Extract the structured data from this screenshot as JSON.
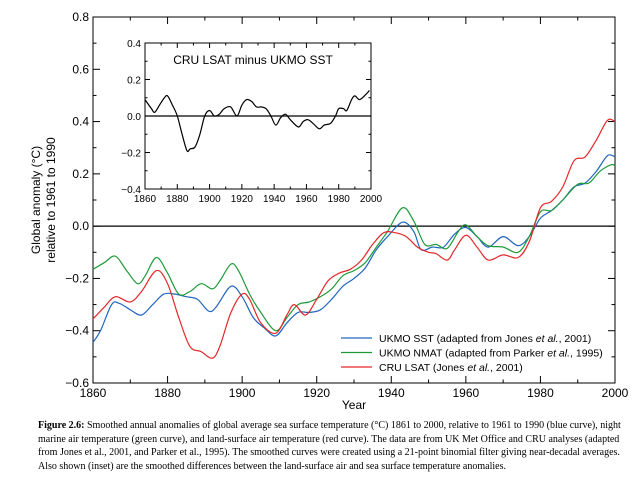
{
  "chart_data": [
    {
      "type": "line",
      "xlabel": "Year",
      "ylabel": "Global anomaly (°C)",
      "ylabel2": "relative to 1961 to 1990",
      "xlim": [
        1860,
        2000
      ],
      "ylim": [
        -0.6,
        0.8
      ],
      "xticks": [
        "1860",
        "1880",
        "1900",
        "1920",
        "1940",
        "1960",
        "1980",
        "2000"
      ],
      "yticks": [
        "0.8",
        "0.6",
        "0.4",
        "0.2",
        "0.0",
        "−0.2",
        "−0.4",
        "−0.6"
      ],
      "zero_line": true,
      "grid": false,
      "legend_position": "bottom-right",
      "series": [
        {
          "name": "UKMO SST (adapted from Jones et al., 2001)",
          "label_main": "UKMO SST (adapted from Jones ",
          "label_italic": "et al.",
          "label_end": ", 2001)",
          "color": "#2166c0",
          "x": [
            1860,
            1862,
            1865,
            1867,
            1870,
            1873,
            1876,
            1879,
            1882,
            1885,
            1888,
            1891,
            1893,
            1897,
            1900,
            1903,
            1906,
            1909,
            1912,
            1915,
            1918,
            1921,
            1924,
            1927,
            1930,
            1933,
            1936,
            1939,
            1943,
            1946,
            1948,
            1951,
            1954,
            1957,
            1960,
            1963,
            1966,
            1970,
            1974,
            1977,
            1980,
            1983,
            1986,
            1989,
            1992,
            1995,
            1998,
            2000
          ],
          "y": [
            -0.445,
            -0.4,
            -0.3,
            -0.295,
            -0.32,
            -0.34,
            -0.3,
            -0.26,
            -0.26,
            -0.27,
            -0.28,
            -0.325,
            -0.31,
            -0.23,
            -0.27,
            -0.35,
            -0.39,
            -0.42,
            -0.37,
            -0.33,
            -0.33,
            -0.32,
            -0.28,
            -0.23,
            -0.2,
            -0.16,
            -0.09,
            -0.04,
            0.015,
            -0.02,
            -0.09,
            -0.08,
            -0.08,
            -0.03,
            -0.005,
            -0.04,
            -0.08,
            -0.04,
            -0.075,
            -0.04,
            0.03,
            0.06,
            0.1,
            0.15,
            0.165,
            0.21,
            0.27,
            0.265
          ]
        },
        {
          "name": "UKMO NMAT (adapted from Parker et al., 1995)",
          "label_main": "UKMO NMAT (adapted from Parker ",
          "label_italic": "et al.",
          "label_end": ", 1995)",
          "color": "#1f9a3a",
          "x": [
            1860,
            1863,
            1866,
            1869,
            1872,
            1874,
            1877,
            1880,
            1883,
            1886,
            1889,
            1892,
            1894,
            1897,
            1899,
            1902,
            1905,
            1909,
            1912,
            1915,
            1918,
            1921,
            1924,
            1927,
            1930,
            1933,
            1936,
            1939,
            1943,
            1946,
            1949,
            1952,
            1955,
            1958,
            1960,
            1963,
            1966,
            1970,
            1974,
            1977,
            1980,
            1983,
            1986,
            1990,
            1993,
            1996,
            1999,
            2000
          ],
          "y": [
            -0.165,
            -0.14,
            -0.115,
            -0.17,
            -0.22,
            -0.19,
            -0.12,
            -0.18,
            -0.26,
            -0.25,
            -0.22,
            -0.24,
            -0.21,
            -0.145,
            -0.17,
            -0.26,
            -0.33,
            -0.4,
            -0.35,
            -0.3,
            -0.29,
            -0.27,
            -0.24,
            -0.19,
            -0.17,
            -0.14,
            -0.08,
            -0.02,
            0.07,
            0.02,
            -0.07,
            -0.07,
            -0.085,
            -0.02,
            0.005,
            -0.04,
            -0.075,
            -0.08,
            -0.1,
            -0.04,
            0.055,
            0.06,
            0.1,
            0.16,
            0.165,
            0.21,
            0.235,
            0.23
          ]
        },
        {
          "name": "CRU LSAT (Jones et al., 2001)",
          "label_main": "CRU LSAT (Jones ",
          "label_italic": "et al.",
          "label_end": ", 2001)",
          "color": "#e3282a",
          "x": [
            1860,
            1863,
            1866,
            1870,
            1873,
            1877,
            1880,
            1883,
            1886,
            1889,
            1892,
            1894,
            1897,
            1900,
            1902,
            1905,
            1909,
            1912,
            1914,
            1917,
            1920,
            1923,
            1926,
            1929,
            1932,
            1935,
            1938,
            1941,
            1944,
            1947,
            1950,
            1952,
            1955,
            1957,
            1960,
            1963,
            1966,
            1970,
            1974,
            1977,
            1980,
            1983,
            1986,
            1989,
            1992,
            1995,
            1998,
            2000
          ],
          "y": [
            -0.355,
            -0.31,
            -0.27,
            -0.29,
            -0.25,
            -0.17,
            -0.22,
            -0.35,
            -0.46,
            -0.48,
            -0.505,
            -0.46,
            -0.33,
            -0.26,
            -0.28,
            -0.37,
            -0.41,
            -0.34,
            -0.3,
            -0.34,
            -0.28,
            -0.21,
            -0.18,
            -0.165,
            -0.13,
            -0.07,
            -0.025,
            -0.025,
            -0.04,
            -0.08,
            -0.1,
            -0.105,
            -0.13,
            -0.09,
            -0.035,
            -0.08,
            -0.13,
            -0.11,
            -0.12,
            -0.06,
            0.07,
            0.095,
            0.15,
            0.25,
            0.265,
            0.33,
            0.405,
            0.4
          ]
        }
      ]
    },
    {
      "type": "line",
      "title": "CRU LSAT minus UKMO SST",
      "xlim": [
        1860,
        2000
      ],
      "ylim": [
        -0.4,
        0.4
      ],
      "xticks": [
        "1860",
        "1880",
        "1900",
        "1920",
        "1940",
        "1960",
        "1980",
        "2000"
      ],
      "yticks": [
        "0.4",
        "0.2",
        "0.0",
        "−0.2",
        "−0.4"
      ],
      "zero_line": true,
      "series": [
        {
          "color": "#000000",
          "x": [
            1860,
            1864,
            1866,
            1869,
            1872,
            1874,
            1877,
            1880,
            1883,
            1886,
            1888,
            1891,
            1894,
            1897,
            1900,
            1903,
            1906,
            1909,
            1913,
            1917,
            1920,
            1923,
            1926,
            1929,
            1932,
            1935,
            1938,
            1941,
            1944,
            1947,
            1950,
            1955,
            1958,
            1961,
            1964,
            1968,
            1971,
            1975,
            1978,
            1980,
            1983,
            1985,
            1988,
            1990,
            1993,
            1997,
            1999
          ],
          "y": [
            0.09,
            0.04,
            0.02,
            0.06,
            0.1,
            0.11,
            0.06,
            0.0,
            -0.1,
            -0.19,
            -0.18,
            -0.17,
            -0.1,
            0.0,
            0.03,
            0.0,
            0.01,
            0.04,
            0.05,
            0.0,
            0.06,
            0.09,
            0.08,
            0.05,
            0.05,
            0.04,
            0.0,
            -0.05,
            -0.01,
            0.01,
            -0.02,
            -0.06,
            -0.03,
            -0.02,
            -0.04,
            -0.07,
            -0.05,
            -0.04,
            0.0,
            0.04,
            0.04,
            0.03,
            0.09,
            0.11,
            0.09,
            0.12,
            0.14
          ]
        }
      ]
    }
  ],
  "caption": {
    "label": "Figure 2.6:",
    "text": " Smoothed annual anomalies of global average sea surface temperature (°C) 1861 to 2000, relative to 1961 to 1990 (blue curve), night marine air temperature (green curve), and land-surface air temperature (red curve). The data are from UK Met Office and CRU analyses (adapted from Jones et al., 2001, and Parker et al., 1995). The smoothed curves were created using a 21-point binomial filter giving near-decadal averages. Also shown (inset) are the smoothed differences between the land-surface air and sea surface temperature anomalies."
  }
}
